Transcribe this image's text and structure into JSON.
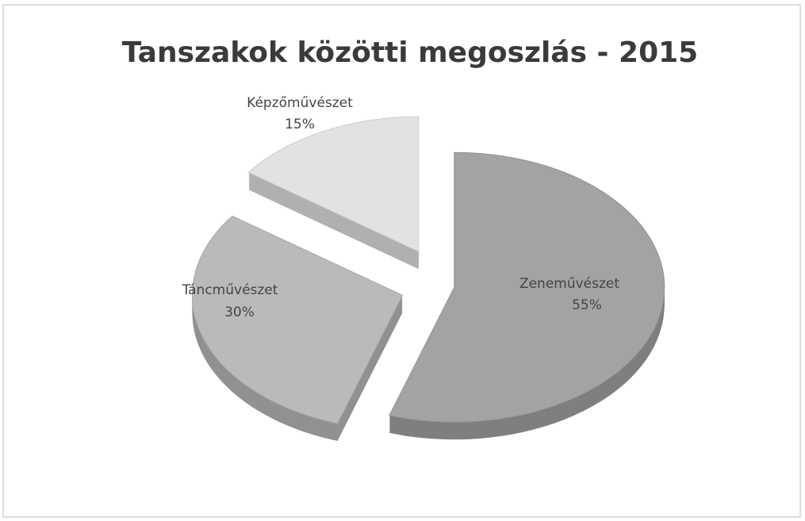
{
  "chart_data": {
    "type": "pie",
    "title": "Tanszakok közötti megoszlás - 2015",
    "categories": [
      "Zeneművészet",
      "Táncművészet",
      "Képzőművészet"
    ],
    "values": [
      55,
      30,
      15
    ],
    "value_labels": [
      "55%",
      "30%",
      "15%"
    ],
    "colors": [
      "#a3a3a3",
      "#bababa",
      "#e2e2e2"
    ]
  }
}
